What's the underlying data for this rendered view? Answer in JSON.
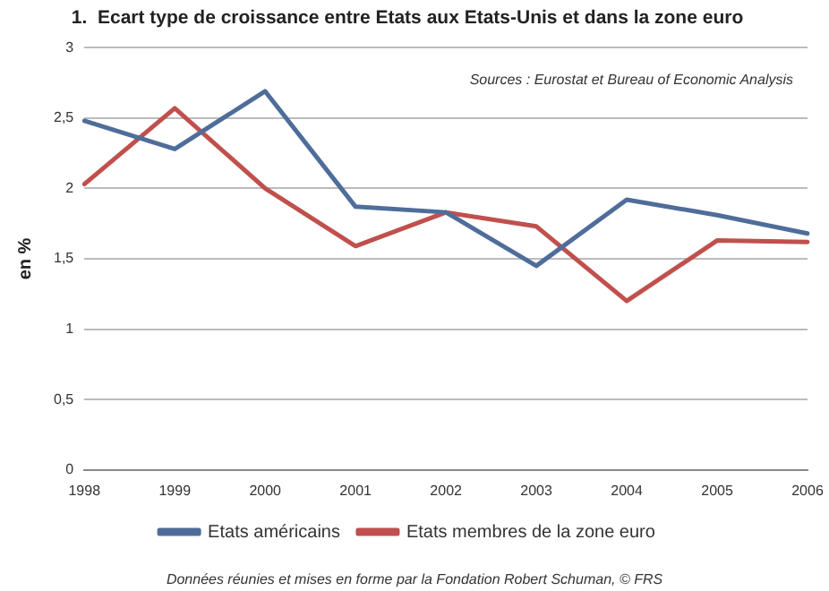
{
  "chart_data": {
    "type": "line",
    "title": "1.  Ecart type de croissance entre Etats aux Etats-Unis et dans la zone euro",
    "ylabel": "en %",
    "categories": [
      "1998",
      "1999",
      "2000",
      "2001",
      "2002",
      "2003",
      "2004",
      "2005",
      "2006"
    ],
    "series": [
      {
        "name": "Etats américains",
        "color": "#4f6d9a",
        "values": [
          2.48,
          2.28,
          2.69,
          1.87,
          1.83,
          1.45,
          1.92,
          1.81,
          1.68
        ]
      },
      {
        "name": "Etats membres de la zone euro",
        "color": "#c0504d",
        "values": [
          2.03,
          2.57,
          2.0,
          1.59,
          1.83,
          1.73,
          1.2,
          1.63,
          1.62
        ]
      }
    ],
    "ylim": [
      0,
      3
    ],
    "yticks": [
      0,
      {
        "value": 0.5,
        "label": "0,5"
      },
      1,
      {
        "value": 1.5,
        "label": "1,5"
      },
      2,
      {
        "value": 2.5,
        "label": "2,5"
      },
      3
    ],
    "grid": "y",
    "legend": "bottom",
    "marker": "none",
    "line_style": "solid",
    "annotations": [
      "Sources : Eurostat et Bureau of Economic Analysis",
      "Données réunies et mises en forme par la Fondation Robert Schuman, © FRS"
    ]
  }
}
